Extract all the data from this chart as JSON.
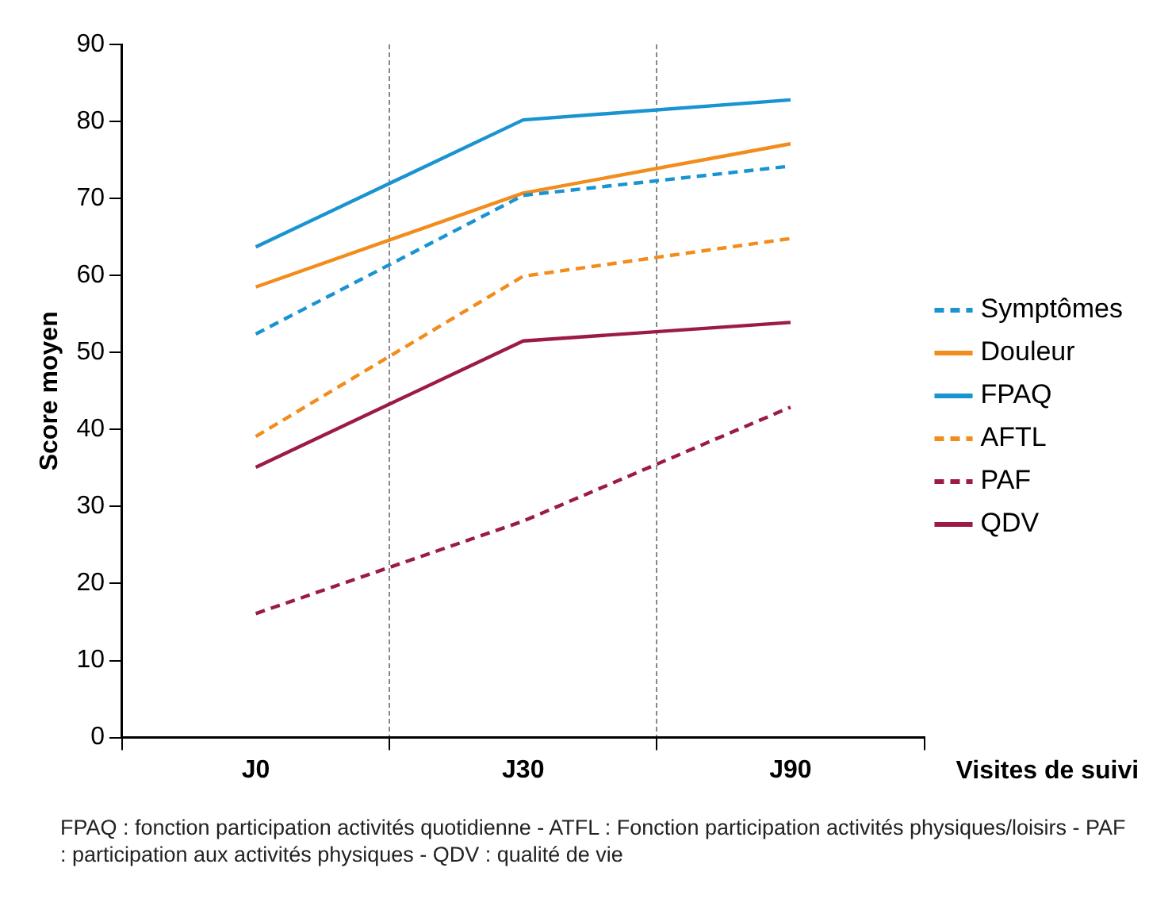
{
  "chart_data": {
    "type": "line",
    "xlabel": "Visites de suivi",
    "ylabel": "Score moyen",
    "categories": [
      "J0",
      "J30",
      "J90"
    ],
    "series": [
      {
        "name": "Symptômes",
        "color": "#1a94d0",
        "line_style": "dashed",
        "values": [
          52.4,
          70.4,
          74.2
        ]
      },
      {
        "name": "Douleur",
        "color": "#f28c1c",
        "line_style": "solid",
        "values": [
          58.5,
          70.7,
          77.1
        ]
      },
      {
        "name": "FPAQ",
        "color": "#1a94d0",
        "line_style": "solid",
        "values": [
          63.7,
          80.2,
          82.8
        ]
      },
      {
        "name": "AFTL",
        "color": "#f28c1c",
        "line_style": "dashed",
        "values": [
          39.1,
          59.9,
          64.8
        ]
      },
      {
        "name": "PAF",
        "color": "#9b1b45",
        "line_style": "dashed",
        "values": [
          16.1,
          28.1,
          42.9
        ]
      },
      {
        "name": "QDV",
        "color": "#9b1b45",
        "line_style": "solid",
        "values": [
          35.1,
          51.5,
          53.9
        ]
      }
    ],
    "ylim": [
      0,
      90
    ],
    "yticks": [
      0,
      10,
      20,
      30,
      40,
      50,
      60,
      70,
      80,
      90
    ],
    "grid": "x",
    "legend": "right",
    "marker": "none",
    "annotations": [
      "FPAQ : fonction participation activités quotidienne - ATFL : Fonction participation activités physiques/loisirs - PAF : participation aux activités physiques - QDV : qualité de vie"
    ]
  }
}
